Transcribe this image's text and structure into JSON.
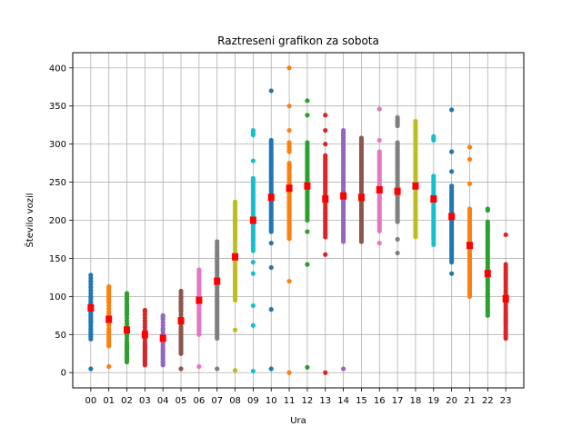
{
  "chart_data": {
    "type": "scatter",
    "title": "Raztreseni grafikon za sobota",
    "xlabel": "Ura",
    "ylabel": "Število vozil",
    "categories": [
      "00",
      "01",
      "02",
      "03",
      "04",
      "05",
      "06",
      "07",
      "08",
      "09",
      "10",
      "11",
      "12",
      "13",
      "14",
      "15",
      "16",
      "17",
      "18",
      "19",
      "20",
      "21",
      "22",
      "23"
    ],
    "ylim": [
      -20,
      420
    ],
    "yticks": [
      0,
      50,
      100,
      150,
      200,
      250,
      300,
      350,
      400
    ],
    "grid": true,
    "legend": "none",
    "mean_marker_color": "#ff0000",
    "palette": [
      "#1f77b4",
      "#ff7f0e",
      "#2ca02c",
      "#d62728",
      "#9467bd",
      "#8c564b",
      "#e377c2",
      "#7f7f7f",
      "#bcbd22",
      "#17becf"
    ],
    "series": [
      {
        "x": "00",
        "min": 5,
        "max": 128,
        "mean": 85,
        "values": [
          5,
          44,
          52,
          58,
          65,
          70,
          75,
          80,
          83,
          85,
          88,
          90,
          92,
          95,
          98,
          100,
          104,
          108,
          112,
          116,
          120,
          124,
          128
        ]
      },
      {
        "x": "01",
        "min": 8,
        "max": 113,
        "mean": 70,
        "values": [
          8,
          35,
          40,
          45,
          50,
          55,
          58,
          62,
          65,
          68,
          70,
          72,
          75,
          78,
          80,
          84,
          88,
          92,
          97,
          103,
          108,
          113
        ]
      },
      {
        "x": "02",
        "min": 14,
        "max": 104,
        "mean": 56,
        "values": [
          14,
          20,
          25,
          30,
          35,
          40,
          44,
          48,
          52,
          56,
          60,
          64,
          68,
          72,
          76,
          82,
          88,
          95,
          104
        ]
      },
      {
        "x": "03",
        "min": 10,
        "max": 82,
        "mean": 50,
        "values": [
          10,
          15,
          20,
          25,
          30,
          35,
          40,
          44,
          48,
          50,
          53,
          56,
          60,
          64,
          68,
          72,
          76,
          80,
          82
        ]
      },
      {
        "x": "04",
        "min": 10,
        "max": 75,
        "mean": 45,
        "values": [
          10,
          15,
          20,
          25,
          30,
          35,
          38,
          42,
          45,
          48,
          51,
          55,
          58,
          62,
          66,
          70,
          73,
          75
        ]
      },
      {
        "x": "05",
        "min": 5,
        "max": 107,
        "mean": 68,
        "values": [
          5,
          25,
          30,
          35,
          40,
          45,
          50,
          55,
          60,
          64,
          68,
          72,
          76,
          80,
          85,
          90,
          95,
          100,
          107
        ]
      },
      {
        "x": "06",
        "min": 8,
        "max": 135,
        "mean": 95,
        "values": [
          8,
          50,
          55,
          60,
          65,
          70,
          75,
          80,
          85,
          90,
          95,
          100,
          105,
          110,
          115,
          120,
          125,
          130,
          135
        ]
      },
      {
        "x": "07",
        "min": 5,
        "max": 172,
        "mean": 120,
        "values": [
          5,
          45,
          55,
          65,
          75,
          85,
          95,
          105,
          112,
          118,
          122,
          128,
          134,
          140,
          146,
          152,
          158,
          165,
          172
        ]
      },
      {
        "x": "08",
        "min": 3,
        "max": 224,
        "mean": 152,
        "values": [
          3,
          56,
          95,
          105,
          118,
          128,
          138,
          145,
          152,
          158,
          165,
          172,
          180,
          188,
          196,
          204,
          212,
          218,
          224
        ]
      },
      {
        "x": "09",
        "min": 2,
        "max": 318,
        "mean": 200,
        "values": [
          2,
          62,
          88,
          130,
          145,
          160,
          172,
          182,
          192,
          200,
          206,
          214,
          222,
          232,
          242,
          255,
          278,
          312,
          318
        ]
      },
      {
        "x": "10",
        "min": 5,
        "max": 370,
        "mean": 230,
        "values": [
          5,
          83,
          138,
          170,
          185,
          198,
          210,
          220,
          228,
          232,
          238,
          246,
          255,
          265,
          275,
          288,
          300,
          305,
          370
        ]
      },
      {
        "x": "11",
        "min": 0,
        "max": 400,
        "mean": 242,
        "values": [
          0,
          120,
          176,
          190,
          200,
          210,
          220,
          230,
          238,
          242,
          248,
          256,
          265,
          275,
          290,
          302,
          318,
          350,
          400
        ]
      },
      {
        "x": "12",
        "min": 7,
        "max": 357,
        "mean": 245,
        "values": [
          7,
          142,
          185,
          200,
          212,
          222,
          232,
          240,
          245,
          250,
          258,
          266,
          275,
          285,
          295,
          302,
          338,
          357
        ]
      },
      {
        "x": "13",
        "min": 0,
        "max": 338,
        "mean": 228,
        "values": [
          0,
          155,
          178,
          192,
          200,
          210,
          218,
          225,
          230,
          236,
          244,
          252,
          262,
          272,
          285,
          300,
          318,
          338
        ]
      },
      {
        "x": "14",
        "min": 5,
        "max": 318,
        "mean": 232,
        "values": [
          5,
          172,
          185,
          198,
          208,
          216,
          224,
          230,
          235,
          240,
          248,
          256,
          265,
          276,
          290,
          300,
          310,
          318
        ]
      },
      {
        "x": "15",
        "min": 172,
        "max": 308,
        "mean": 230,
        "values": [
          172,
          182,
          192,
          200,
          208,
          216,
          224,
          230,
          236,
          242,
          250,
          258,
          266,
          274,
          284,
          295,
          300,
          308
        ]
      },
      {
        "x": "16",
        "min": 170,
        "max": 346,
        "mean": 240,
        "values": [
          170,
          186,
          196,
          206,
          214,
          222,
          230,
          238,
          242,
          248,
          256,
          264,
          272,
          280,
          290,
          305,
          346
        ]
      },
      {
        "x": "17",
        "min": 157,
        "max": 335,
        "mean": 238,
        "values": [
          157,
          175,
          198,
          210,
          218,
          226,
          232,
          238,
          242,
          248,
          256,
          264,
          272,
          282,
          292,
          302,
          324,
          335
        ]
      },
      {
        "x": "18",
        "min": 178,
        "max": 330,
        "mean": 245,
        "values": [
          178,
          192,
          202,
          210,
          218,
          226,
          234,
          240,
          245,
          250,
          258,
          266,
          274,
          284,
          296,
          310,
          320,
          330
        ]
      },
      {
        "x": "19",
        "min": 168,
        "max": 310,
        "mean": 228,
        "values": [
          168,
          175,
          184,
          192,
          200,
          208,
          216,
          222,
          228,
          234,
          240,
          246,
          252,
          258,
          305,
          310
        ]
      },
      {
        "x": "20",
        "min": 130,
        "max": 345,
        "mean": 205,
        "values": [
          130,
          145,
          158,
          168,
          178,
          186,
          194,
          200,
          205,
          212,
          220,
          228,
          236,
          245,
          264,
          290,
          345
        ]
      },
      {
        "x": "21",
        "min": 100,
        "max": 296,
        "mean": 167,
        "values": [
          100,
          110,
          120,
          130,
          140,
          150,
          158,
          164,
          167,
          172,
          180,
          188,
          196,
          205,
          215,
          248,
          280,
          296
        ]
      },
      {
        "x": "22",
        "min": 75,
        "max": 215,
        "mean": 130,
        "values": [
          75,
          85,
          95,
          105,
          112,
          120,
          126,
          130,
          135,
          142,
          150,
          158,
          166,
          176,
          190,
          198,
          213,
          215
        ]
      },
      {
        "x": "23",
        "min": 45,
        "max": 181,
        "mean": 97,
        "values": [
          45,
          55,
          62,
          70,
          78,
          85,
          92,
          97,
          102,
          108,
          115,
          122,
          128,
          135,
          142,
          181
        ]
      }
    ]
  }
}
